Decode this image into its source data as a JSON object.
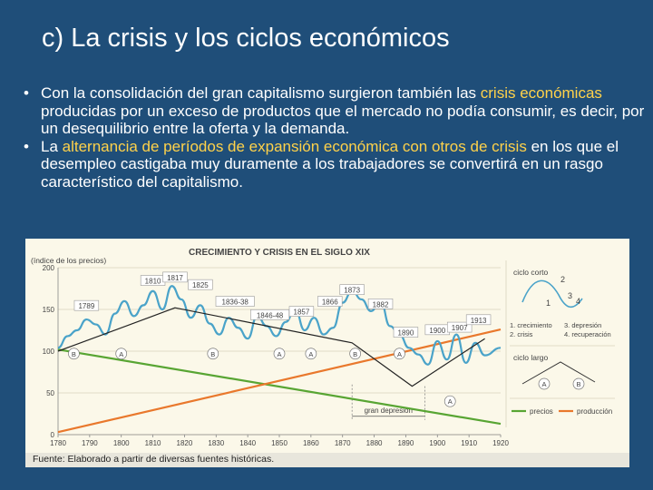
{
  "slide": {
    "title": "c) La crisis y los ciclos económicos",
    "bullets": [
      {
        "parts": [
          {
            "text": "Con la consolidación del gran capitalismo surgieron también las ",
            "hl": false
          },
          {
            "text": "crisis económicas",
            "hl": true
          },
          {
            "text": " producidas por un exceso de productos que el mercado no podía consumir, es decir, por un desequilibrio entre la oferta y la demanda.",
            "hl": false
          }
        ]
      },
      {
        "parts": [
          {
            "text": "La ",
            "hl": false
          },
          {
            "text": "alternancia de períodos de expansión económica con otros de crisis",
            "hl": true
          },
          {
            "text": " en los que el desempleo castigaba muy duramente a los trabajadores se convertirá en un rasgo característico del capitalismo.",
            "hl": false
          }
        ]
      }
    ],
    "bullet_marker": "•"
  },
  "chart_data": {
    "type": "line",
    "title": "CRECIMIENTO Y CRISIS EN EL SIGLO XIX",
    "ylabel": "(índice de los precios)",
    "ylim": [
      0,
      200
    ],
    "yticks": [
      0,
      50,
      100,
      150,
      200
    ],
    "xlim": [
      1780,
      1920
    ],
    "xticks": [
      1780,
      1790,
      1800,
      1810,
      1820,
      1830,
      1840,
      1850,
      1860,
      1870,
      1880,
      1890,
      1900,
      1910,
      1920
    ],
    "series": [
      {
        "name": "precios",
        "color": "#58a533",
        "x": [
          1780,
          1920
        ],
        "y": [
          102,
          13
        ]
      },
      {
        "name": "producción",
        "color": "#e9782c",
        "x": [
          1780,
          1920
        ],
        "y": [
          3,
          126
        ]
      },
      {
        "name": "ciclo",
        "color": "#4aa3c9",
        "x": [
          1780,
          1783,
          1786,
          1789,
          1792,
          1795,
          1798,
          1801,
          1804,
          1807,
          1810,
          1813,
          1816,
          1819,
          1822,
          1825,
          1828,
          1831,
          1834,
          1837,
          1840,
          1843,
          1846,
          1849,
          1852,
          1855,
          1858,
          1861,
          1864,
          1867,
          1870,
          1873,
          1876,
          1879,
          1882,
          1885,
          1888,
          1891,
          1894,
          1897,
          1900,
          1903,
          1906,
          1909,
          1912,
          1915,
          1920
        ],
        "y": [
          104,
          118,
          125,
          138,
          132,
          120,
          145,
          160,
          142,
          155,
          172,
          150,
          178,
          162,
          140,
          155,
          133,
          120,
          140,
          128,
          115,
          142,
          130,
          118,
          135,
          150,
          125,
          140,
          120,
          128,
          158,
          172,
          162,
          148,
          160,
          130,
          120,
          104,
          96,
          84,
          112,
          90,
          120,
          86,
          110,
          95,
          104
        ]
      },
      {
        "name": "tendencia",
        "color": "#222222",
        "x": [
          1780,
          1810,
          1817,
          1873,
          1892,
          1915
        ],
        "y": [
          100,
          142,
          152,
          110,
          58,
          115
        ]
      }
    ],
    "year_labels": [
      {
        "label": "1789",
        "x": 1789,
        "y": 152
      },
      {
        "label": "1810",
        "x": 1810,
        "y": 182
      },
      {
        "label": "1817",
        "x": 1817,
        "y": 186
      },
      {
        "label": "1825",
        "x": 1825,
        "y": 177
      },
      {
        "label": "1836-38",
        "x": 1836,
        "y": 157
      },
      {
        "label": "1846-48",
        "x": 1847,
        "y": 141
      },
      {
        "label": "1857",
        "x": 1857,
        "y": 145
      },
      {
        "label": "1866",
        "x": 1866,
        "y": 157
      },
      {
        "label": "1873",
        "x": 1873,
        "y": 171
      },
      {
        "label": "1882",
        "x": 1882,
        "y": 154
      },
      {
        "label": "1890",
        "x": 1890,
        "y": 120
      },
      {
        "label": "1900",
        "x": 1900,
        "y": 123
      },
      {
        "label": "1907",
        "x": 1907,
        "y": 126
      },
      {
        "label": "1913",
        "x": 1913,
        "y": 135
      }
    ],
    "phase_labels": [
      {
        "label": "B",
        "x": 1785,
        "y": 97
      },
      {
        "label": "A",
        "x": 1800,
        "y": 97
      },
      {
        "label": "B",
        "x": 1829,
        "y": 97
      },
      {
        "label": "A",
        "x": 1850,
        "y": 97
      },
      {
        "label": "A",
        "x": 1860,
        "y": 97
      },
      {
        "label": "B",
        "x": 1874,
        "y": 97
      },
      {
        "label": "A",
        "x": 1888,
        "y": 97
      },
      {
        "label": "A",
        "x": 1904,
        "y": 40
      }
    ],
    "annotation": "gran depresión",
    "legend": {
      "ciclo_corto": "ciclo corto",
      "ciclo_largo": "ciclo largo",
      "numbers": [
        "1",
        "2",
        "3",
        "4"
      ],
      "phase_a": "A",
      "phase_b": "B",
      "items": [
        "1. crecimiento",
        "3. depresión",
        "2. crisis",
        "4. recuperación"
      ]
    }
  },
  "source": "Fuente: Elaborado a partir de diversas fuentes históricas."
}
